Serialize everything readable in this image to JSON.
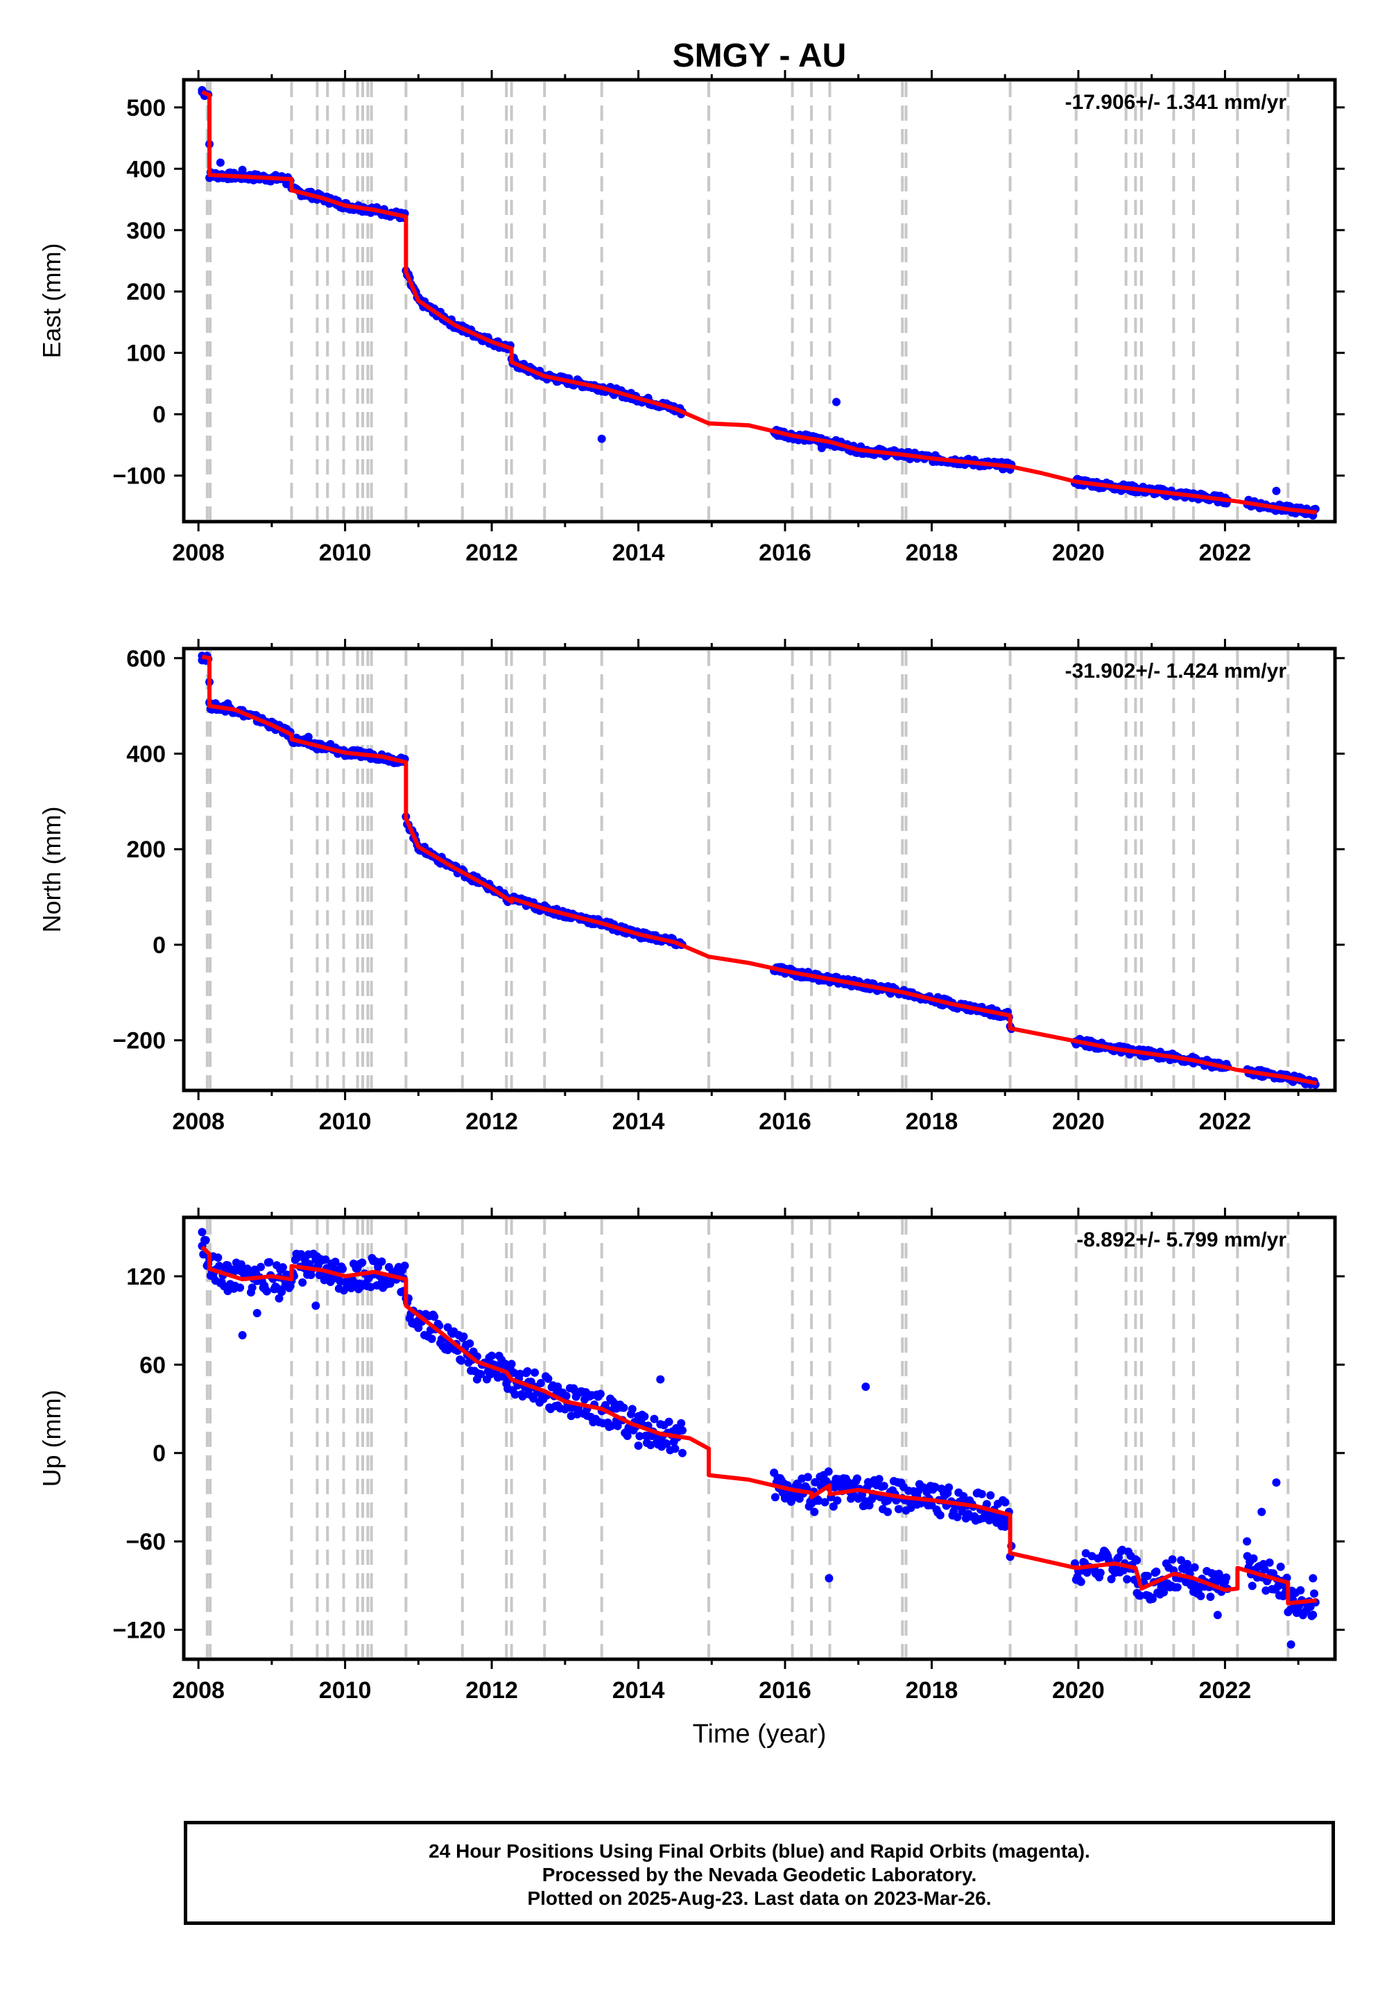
{
  "title": "SMGY - AU",
  "xlabel": "Time (year)",
  "colors": {
    "points": "#0000ff",
    "model": "#ff0000",
    "events": "#c8c8c8"
  },
  "caption": {
    "line1": "24 Hour Positions Using Final Orbits (blue) and Rapid Orbits (magenta).",
    "line2": "Processed by the Nevada Geodetic Laboratory.",
    "line3": "Plotted on 2025-Aug-23. Last data on 2023-Mar-26."
  },
  "chart_data": [
    {
      "type": "scatter",
      "ylabel": "East (mm)",
      "rate": "-17.906+/- 1.341 mm/yr",
      "xlim": [
        2007.8,
        2023.5
      ],
      "ylim": [
        -175,
        545
      ],
      "xticks": [
        2008,
        2010,
        2012,
        2014,
        2016,
        2018,
        2020,
        2022
      ],
      "yticks": [
        500,
        400,
        300,
        200,
        100,
        0,
        -100
      ],
      "event_lines": [
        2008.12,
        2008.16,
        2009.27,
        2009.62,
        2009.76,
        2009.98,
        2010.17,
        2010.24,
        2010.31,
        2010.36,
        2010.83,
        2011.6,
        2012.2,
        2012.27,
        2012.72,
        2013.5,
        2014.96,
        2016.1,
        2016.36,
        2016.61,
        2017.6,
        2017.65,
        2019.07,
        2019.97,
        2020.65,
        2020.78,
        2020.86,
        2021.3,
        2021.57,
        2022.17,
        2022.86
      ],
      "model": [
        [
          2008.05,
          525
        ],
        [
          2008.15,
          520
        ],
        [
          2008.15,
          390
        ],
        [
          2009.27,
          383
        ],
        [
          2009.27,
          365
        ],
        [
          2009.7,
          352
        ],
        [
          2010.0,
          340
        ],
        [
          2010.4,
          333
        ],
        [
          2010.83,
          322
        ],
        [
          2010.83,
          232
        ],
        [
          2011.0,
          185
        ],
        [
          2011.5,
          145
        ],
        [
          2012.0,
          118
        ],
        [
          2012.27,
          107
        ],
        [
          2012.27,
          85
        ],
        [
          2012.72,
          62
        ],
        [
          2013.5,
          43
        ],
        [
          2014.0,
          26
        ],
        [
          2014.5,
          9
        ],
        [
          2014.96,
          -15
        ],
        [
          2015.5,
          -18
        ],
        [
          2016.1,
          -35
        ],
        [
          2016.61,
          -45
        ],
        [
          2017.0,
          -58
        ],
        [
          2017.62,
          -66
        ],
        [
          2018.0,
          -72
        ],
        [
          2019.07,
          -85
        ],
        [
          2019.5,
          -96
        ],
        [
          2019.97,
          -110
        ],
        [
          2020.5,
          -118
        ],
        [
          2021.0,
          -125
        ],
        [
          2021.57,
          -133
        ],
        [
          2022.17,
          -142
        ],
        [
          2022.86,
          -155
        ],
        [
          2023.25,
          -160
        ]
      ],
      "points": [
        [
          2008.05,
          528
        ],
        [
          2008.15,
          440
        ],
        [
          2008.3,
          410
        ],
        [
          2008.6,
          398
        ],
        [
          2008.9,
          385
        ],
        [
          2009.2,
          375
        ],
        [
          2009.5,
          362
        ],
        [
          2009.8,
          352
        ],
        [
          2010.2,
          335
        ],
        [
          2010.5,
          325
        ],
        [
          2010.8,
          320
        ],
        [
          2010.9,
          210
        ],
        [
          2011.2,
          165
        ],
        [
          2011.6,
          135
        ],
        [
          2012.0,
          115
        ],
        [
          2012.3,
          92
        ],
        [
          2012.7,
          62
        ],
        [
          2013.1,
          48
        ],
        [
          2013.5,
          40
        ],
        [
          2013.5,
          -40
        ],
        [
          2013.9,
          25
        ],
        [
          2014.2,
          15
        ],
        [
          2014.5,
          5
        ],
        [
          2015.9,
          -35
        ],
        [
          2016.2,
          -40
        ],
        [
          2016.5,
          -55
        ],
        [
          2016.7,
          20
        ],
        [
          2016.9,
          -60
        ],
        [
          2017.3,
          -62
        ],
        [
          2017.7,
          -70
        ],
        [
          2018.1,
          -73
        ],
        [
          2018.5,
          -76
        ],
        [
          2018.9,
          -83
        ],
        [
          2020.0,
          -110
        ],
        [
          2020.5,
          -118
        ],
        [
          2021.0,
          -123
        ],
        [
          2021.4,
          -132
        ],
        [
          2021.9,
          -140
        ],
        [
          2022.4,
          -142
        ],
        [
          2022.7,
          -125
        ],
        [
          2022.8,
          -150
        ],
        [
          2023.2,
          -165
        ]
      ]
    },
    {
      "type": "scatter",
      "ylabel": "North (mm)",
      "rate": "-31.902+/- 1.424 mm/yr",
      "xlim": [
        2007.8,
        2023.5
      ],
      "ylim": [
        -305,
        620
      ],
      "xticks": [
        2008,
        2010,
        2012,
        2014,
        2016,
        2018,
        2020,
        2022
      ],
      "yticks": [
        600,
        400,
        200,
        0,
        -200
      ],
      "event_lines": [
        2008.12,
        2008.16,
        2009.27,
        2009.62,
        2009.76,
        2009.98,
        2010.17,
        2010.24,
        2010.31,
        2010.36,
        2010.83,
        2011.6,
        2012.2,
        2012.27,
        2012.72,
        2013.5,
        2014.96,
        2016.1,
        2016.36,
        2016.61,
        2017.6,
        2017.65,
        2019.07,
        2019.97,
        2020.65,
        2020.78,
        2020.86,
        2021.3,
        2021.57,
        2022.17,
        2022.86
      ],
      "model": [
        [
          2008.05,
          603
        ],
        [
          2008.15,
          600
        ],
        [
          2008.15,
          500
        ],
        [
          2008.5,
          492
        ],
        [
          2009.0,
          460
        ],
        [
          2009.27,
          440
        ],
        [
          2009.27,
          430
        ],
        [
          2010.0,
          402
        ],
        [
          2010.5,
          394
        ],
        [
          2010.83,
          382
        ],
        [
          2010.83,
          265
        ],
        [
          2011.0,
          205
        ],
        [
          2011.5,
          160
        ],
        [
          2012.0,
          118
        ],
        [
          2012.27,
          90
        ],
        [
          2012.27,
          97
        ],
        [
          2012.72,
          75
        ],
        [
          2013.5,
          45
        ],
        [
          2014.0,
          22
        ],
        [
          2014.5,
          5
        ],
        [
          2014.96,
          -25
        ],
        [
          2015.5,
          -38
        ],
        [
          2016.1,
          -58
        ],
        [
          2016.61,
          -72
        ],
        [
          2017.62,
          -100
        ],
        [
          2018.3,
          -125
        ],
        [
          2019.07,
          -148
        ],
        [
          2019.07,
          -175
        ],
        [
          2019.97,
          -202
        ],
        [
          2020.5,
          -218
        ],
        [
          2021.3,
          -235
        ],
        [
          2021.57,
          -242
        ],
        [
          2022.17,
          -262
        ],
        [
          2022.86,
          -278
        ],
        [
          2023.25,
          -290
        ]
      ],
      "points": [
        [
          2008.05,
          605
        ],
        [
          2008.15,
          550
        ],
        [
          2008.4,
          505
        ],
        [
          2008.8,
          478
        ],
        [
          2009.2,
          452
        ],
        [
          2009.5,
          435
        ],
        [
          2009.8,
          420
        ],
        [
          2010.2,
          402
        ],
        [
          2010.6,
          392
        ],
        [
          2010.8,
          385
        ],
        [
          2010.9,
          240
        ],
        [
          2011.3,
          170
        ],
        [
          2011.8,
          130
        ],
        [
          2012.3,
          95
        ],
        [
          2012.7,
          75
        ],
        [
          2013.2,
          55
        ],
        [
          2013.7,
          35
        ],
        [
          2014.2,
          15
        ],
        [
          2014.5,
          5
        ],
        [
          2016.0,
          -55
        ],
        [
          2016.5,
          -68
        ],
        [
          2017.0,
          -82
        ],
        [
          2017.5,
          -95
        ],
        [
          2018.0,
          -118
        ],
        [
          2018.5,
          -130
        ],
        [
          2019.0,
          -145
        ],
        [
          2020.0,
          -200
        ],
        [
          2020.5,
          -215
        ],
        [
          2021.0,
          -228
        ],
        [
          2021.5,
          -240
        ],
        [
          2022.0,
          -255
        ],
        [
          2022.5,
          -270
        ],
        [
          2022.8,
          -272
        ],
        [
          2023.2,
          -290
        ]
      ]
    },
    {
      "type": "scatter",
      "ylabel": "Up (mm)",
      "rate": "-8.892+/- 5.799 mm/yr",
      "xlim": [
        2007.8,
        2023.5
      ],
      "ylim": [
        -140,
        160
      ],
      "xticks": [
        2008,
        2010,
        2012,
        2014,
        2016,
        2018,
        2020,
        2022
      ],
      "yticks": [
        120,
        60,
        0,
        -60,
        -120
      ],
      "event_lines": [
        2008.12,
        2008.16,
        2009.27,
        2009.62,
        2009.76,
        2009.98,
        2010.17,
        2010.24,
        2010.31,
        2010.36,
        2010.83,
        2011.6,
        2012.2,
        2012.27,
        2012.72,
        2013.5,
        2014.96,
        2016.1,
        2016.36,
        2016.61,
        2017.6,
        2017.65,
        2019.07,
        2019.97,
        2020.65,
        2020.78,
        2020.86,
        2021.3,
        2021.57,
        2022.17,
        2022.86
      ],
      "model": [
        [
          2008.05,
          140
        ],
        [
          2008.15,
          135
        ],
        [
          2008.15,
          125
        ],
        [
          2008.6,
          118
        ],
        [
          2009.0,
          120
        ],
        [
          2009.27,
          118
        ],
        [
          2009.27,
          127
        ],
        [
          2009.7,
          124
        ],
        [
          2010.0,
          120
        ],
        [
          2010.4,
          123
        ],
        [
          2010.83,
          118
        ],
        [
          2010.83,
          100
        ],
        [
          2011.3,
          82
        ],
        [
          2011.8,
          62
        ],
        [
          2012.2,
          55
        ],
        [
          2012.27,
          50
        ],
        [
          2012.72,
          42
        ],
        [
          2013.0,
          35
        ],
        [
          2013.5,
          30
        ],
        [
          2013.9,
          20
        ],
        [
          2014.3,
          13
        ],
        [
          2014.7,
          10
        ],
        [
          2014.96,
          3
        ],
        [
          2014.96,
          -15
        ],
        [
          2015.5,
          -18
        ],
        [
          2016.1,
          -25
        ],
        [
          2016.36,
          -27
        ],
        [
          2016.36,
          -30
        ],
        [
          2016.61,
          -22
        ],
        [
          2016.61,
          -28
        ],
        [
          2017.0,
          -25
        ],
        [
          2017.6,
          -30
        ],
        [
          2018.0,
          -32
        ],
        [
          2018.6,
          -36
        ],
        [
          2019.07,
          -42
        ],
        [
          2019.07,
          -68
        ],
        [
          2019.97,
          -78
        ],
        [
          2020.5,
          -75
        ],
        [
          2020.78,
          -78
        ],
        [
          2020.86,
          -92
        ],
        [
          2021.3,
          -82
        ],
        [
          2021.57,
          -85
        ],
        [
          2022.0,
          -93
        ],
        [
          2022.17,
          -92
        ],
        [
          2022.17,
          -78
        ],
        [
          2022.86,
          -88
        ],
        [
          2022.86,
          -102
        ],
        [
          2023.25,
          -100
        ]
      ],
      "points": [
        [
          2008.05,
          150
        ],
        [
          2008.2,
          120
        ],
        [
          2008.4,
          110
        ],
        [
          2008.6,
          80
        ],
        [
          2008.8,
          95
        ],
        [
          2009.1,
          105
        ],
        [
          2009.4,
          135
        ],
        [
          2009.6,
          100
        ],
        [
          2010.2,
          115
        ],
        [
          2010.5,
          130
        ],
        [
          2010.8,
          110
        ],
        [
          2011.0,
          85
        ],
        [
          2011.4,
          70
        ],
        [
          2011.8,
          50
        ],
        [
          2012.2,
          55
        ],
        [
          2012.5,
          40
        ],
        [
          2012.9,
          45
        ],
        [
          2013.3,
          30
        ],
        [
          2013.7,
          22
        ],
        [
          2014.0,
          5
        ],
        [
          2014.3,
          50
        ],
        [
          2014.6,
          0
        ],
        [
          2016.0,
          -30
        ],
        [
          2016.4,
          -40
        ],
        [
          2016.6,
          -85
        ],
        [
          2016.9,
          -25
        ],
        [
          2017.1,
          45
        ],
        [
          2017.4,
          -40
        ],
        [
          2017.8,
          -35
        ],
        [
          2018.2,
          -25
        ],
        [
          2018.6,
          -45
        ],
        [
          2019.0,
          -50
        ],
        [
          2020.0,
          -80
        ],
        [
          2020.4,
          -70
        ],
        [
          2020.8,
          -95
        ],
        [
          2021.2,
          -75
        ],
        [
          2021.6,
          -90
        ],
        [
          2021.9,
          -110
        ],
        [
          2022.3,
          -60
        ],
        [
          2022.5,
          -40
        ],
        [
          2022.7,
          -20
        ],
        [
          2022.9,
          -130
        ],
        [
          2023.2,
          -85
        ]
      ]
    }
  ]
}
